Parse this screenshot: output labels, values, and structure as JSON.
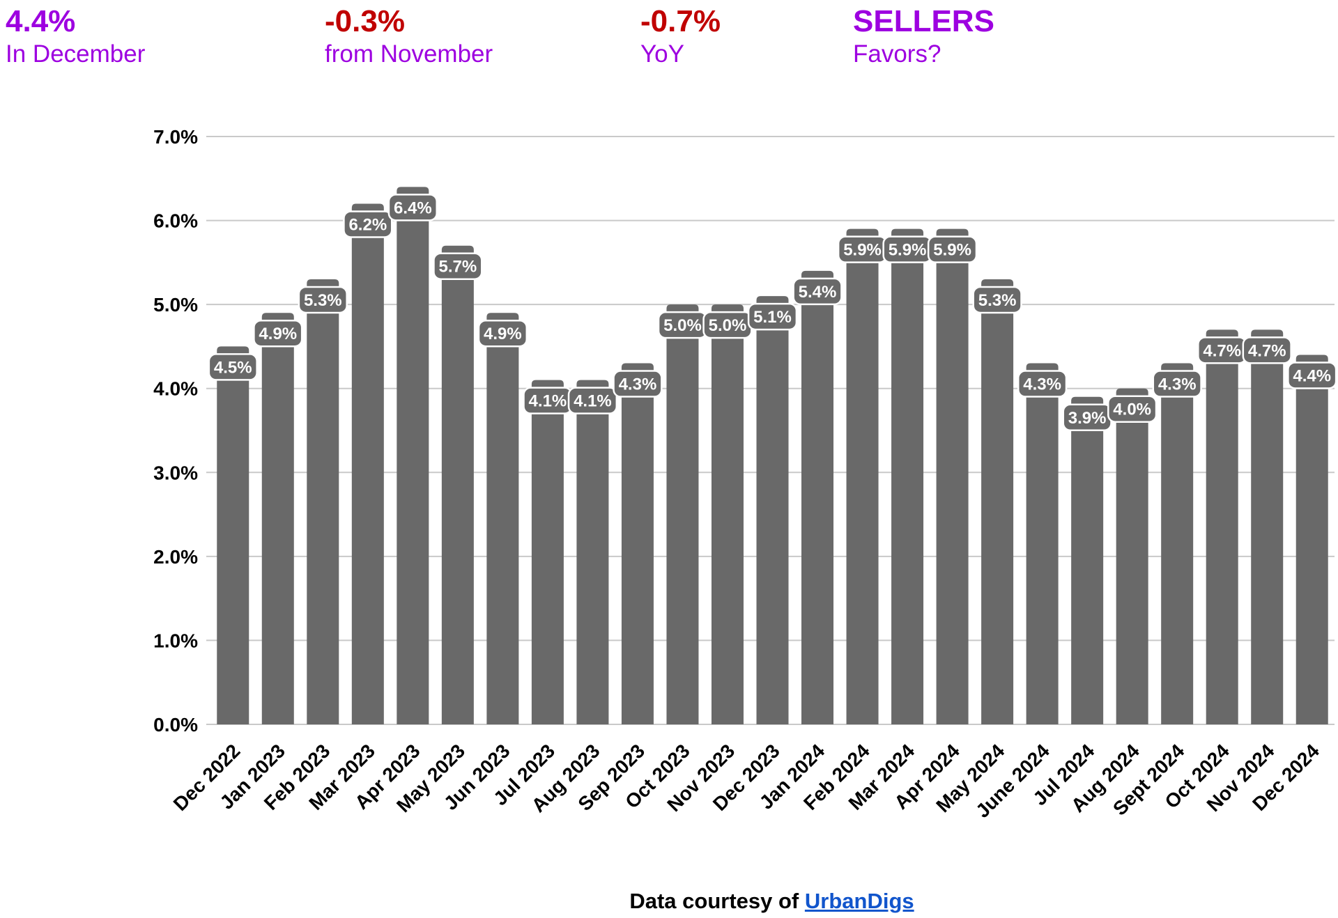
{
  "header": {
    "stats": [
      {
        "value": "4.4%",
        "label": "In December",
        "value_color": "#9D00E0",
        "label_color": "#9D00E0"
      },
      {
        "value": "-0.3%",
        "label": "from November",
        "value_color": "#C00000",
        "label_color": "#9D00E0"
      },
      {
        "value": "-0.7%",
        "label": "YoY",
        "value_color": "#C00000",
        "label_color": "#9D00E0"
      },
      {
        "value": "SELLERS",
        "label": "Favors?",
        "value_color": "#9D00E0",
        "label_color": "#9D00E0"
      }
    ]
  },
  "chart_data": {
    "type": "bar",
    "categories": [
      "Dec 2022",
      "Jan 2023",
      "Feb 2023",
      "Mar 2023",
      "Apr 2023",
      "May 2023",
      "Jun 2023",
      "Jul 2023",
      "Aug 2023",
      "Sep 2023",
      "Oct 2023",
      "Nov 2023",
      "Dec 2023",
      "Jan 2024",
      "Feb 2024",
      "Mar 2024",
      "Apr 2024",
      "May 2024",
      "June 2024",
      "Jul 2024",
      "Aug 2024",
      "Sept 2024",
      "Oct 2024",
      "Nov 2024",
      "Dec 2024"
    ],
    "values": [
      4.5,
      4.9,
      5.3,
      6.2,
      6.4,
      5.7,
      4.9,
      4.1,
      4.1,
      4.3,
      5.0,
      5.0,
      5.1,
      5.4,
      5.9,
      5.9,
      5.9,
      5.3,
      4.3,
      3.9,
      4.0,
      4.3,
      4.7,
      4.7,
      4.4
    ],
    "labels": [
      "4.5%",
      "4.9%",
      "5.3%",
      "6.2%",
      "6.4%",
      "5.7%",
      "4.9%",
      "4.1%",
      "4.1%",
      "4.3%",
      "5.0%",
      "5.0%",
      "5.1%",
      "5.4%",
      "5.9%",
      "5.9%",
      "5.9%",
      "5.3%",
      "4.3%",
      "3.9%",
      "4.0%",
      "4.3%",
      "4.7%",
      "4.7%",
      "4.4%"
    ],
    "title": "",
    "xlabel": "",
    "ylabel": "",
    "ylim": [
      0,
      7
    ],
    "ytick_step": 1,
    "ytick_labels": [
      "0.0%",
      "1.0%",
      "2.0%",
      "3.0%",
      "4.0%",
      "5.0%",
      "6.0%",
      "7.0%"
    ],
    "grid": true,
    "legend": false,
    "bar_color": "#696969",
    "gridline_color": "#c9c9c9",
    "label_pill": {
      "fill": "#696969",
      "stroke": "#ffffff",
      "text_color": "#ffffff"
    }
  },
  "footer": {
    "text": "Data courtesy of ",
    "link": "UrbanDigs",
    "link_color": "#1155CC"
  }
}
